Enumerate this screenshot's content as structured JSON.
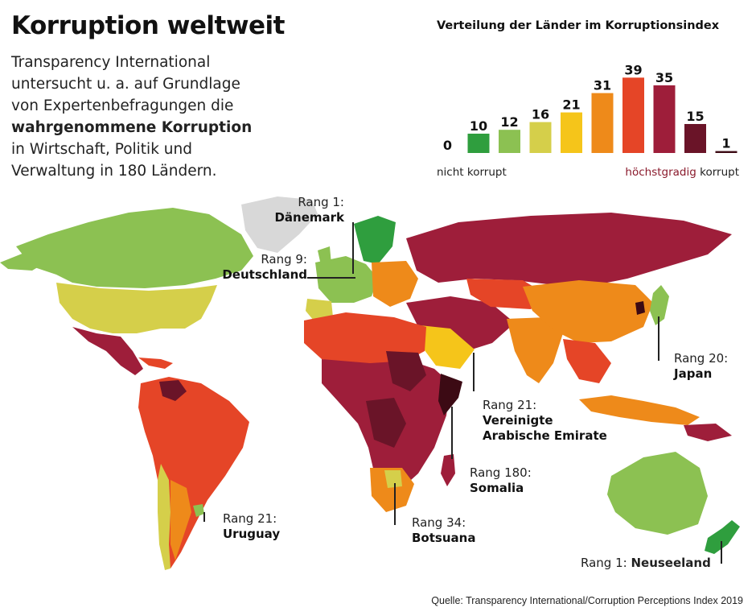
{
  "header": {
    "title": "Korruption weltweit",
    "intro_line1": "Transparency International",
    "intro_line2": "untersucht u. a. auf Grundlage",
    "intro_line3": "von Expertenbefragungen die",
    "intro_strong": "wahrgenommene Korruption",
    "intro_line5": "in Wirtschaft, Politik und",
    "intro_line6": "Verwaltung in 180 Ländern."
  },
  "chart_data": {
    "type": "bar",
    "title": "Verteilung der Länder im Korruptionsindex",
    "values": [
      0,
      10,
      12,
      16,
      21,
      31,
      39,
      35,
      15,
      1
    ],
    "colors": [
      "#2f9e3e",
      "#2f9e3e",
      "#8cc152",
      "#d5cf4a",
      "#f5c51a",
      "#ee8a1a",
      "#e54527",
      "#9e1e3a",
      "#6a1428",
      "#3c0a14"
    ],
    "ylim": [
      0,
      40
    ],
    "xlabel_left": "nicht korrupt",
    "xlabel_right_colored": "höchstgradig",
    "xlabel_right": "korrupt"
  },
  "legend_colors": {
    "highest_text": "#8a1a2c"
  },
  "map": {
    "labels": {
      "denmark": {
        "rank": "Rang 1:",
        "country": "Dänemark"
      },
      "germany": {
        "rank": "Rang 9:",
        "country": "Deutschland"
      },
      "japan": {
        "rank": "Rang 20:",
        "country": "Japan"
      },
      "uae": {
        "rank": "Rang 21:",
        "country": "Vereinigte",
        "country2": "Arabische Emirate"
      },
      "somalia": {
        "rank": "Rang 180:",
        "country": "Somalia"
      },
      "botswana": {
        "rank": "Rang 34:",
        "country": "Botsuana"
      },
      "uruguay": {
        "rank": "Rang 21:",
        "country": "Uruguay"
      },
      "newzealand": {
        "rank": "Rang 1:",
        "country": "Neuseeland"
      }
    }
  },
  "source": "Quelle: Transparency International/Corruption Perceptions Index 2019"
}
